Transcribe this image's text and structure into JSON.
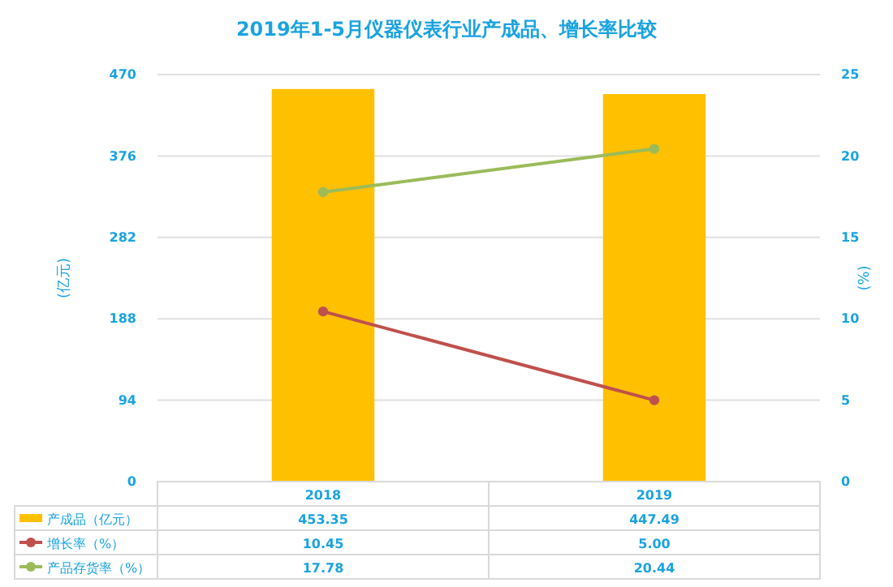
{
  "chart_data": {
    "type": "bar",
    "title": "2019年1-5月仪器仪表行业产成品、增长率比较",
    "categories": [
      "2018",
      "2019"
    ],
    "ylabel": "(亿元)",
    "y2label": "(%)",
    "ylim": [
      0,
      470
    ],
    "yticks": [
      0,
      94,
      188,
      282,
      376,
      470
    ],
    "y2lim": [
      0,
      25
    ],
    "y2ticks": [
      0,
      5,
      10,
      15,
      20,
      25
    ],
    "grid": "y",
    "legend": "bottom",
    "marker": "circle",
    "series": [
      {
        "name": "产成品（亿元）",
        "color": "#ffc000",
        "values": [
          453.35,
          447.49
        ],
        "value_labels": [
          "453.35",
          "447.49"
        ]
      },
      {
        "name": "增长率（%）",
        "type": "line",
        "axis": "y2",
        "color": "#c0504d",
        "values": [
          10.45,
          5.0
        ],
        "value_labels": [
          "10.45",
          "5.00"
        ]
      },
      {
        "name": "产品存货率（%）",
        "type": "line",
        "axis": "y2",
        "color": "#9bbb59",
        "values": [
          17.78,
          20.44
        ],
        "value_labels": [
          "17.78",
          "20.44"
        ]
      }
    ]
  }
}
